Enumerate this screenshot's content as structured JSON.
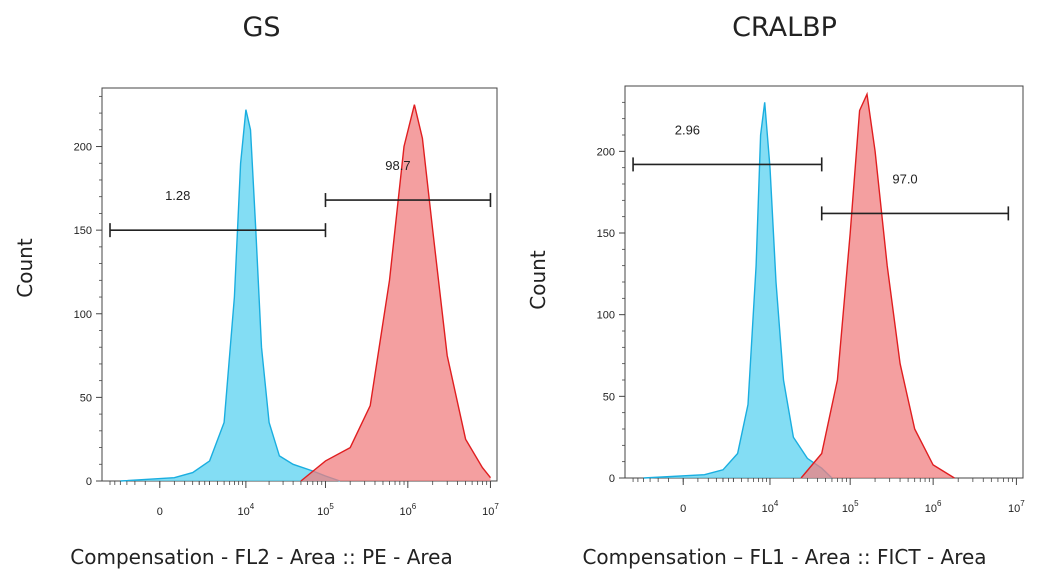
{
  "chart_data": [
    {
      "type": "area",
      "title": "GS",
      "xlabel": "Compensation - FL2 - Area :: PE - Area",
      "ylabel": "Count",
      "x_scale": "biexponential",
      "ylim": [
        0,
        235
      ],
      "y_ticks": [
        0,
        50,
        100,
        150,
        200
      ],
      "x_tick_labels": [
        {
          "base": "0",
          "exp": ""
        },
        {
          "base": "10",
          "exp": "4"
        },
        {
          "base": "10",
          "exp": "5"
        },
        {
          "base": "10",
          "exp": "6"
        },
        {
          "base": "10",
          "exp": "7"
        }
      ],
      "series": [
        {
          "color": "#5ad2f0",
          "line_color": "#1aaee0",
          "x": [
            -2000,
            500,
            1500,
            3000,
            5000,
            7000,
            8500,
            10000,
            11500,
            13500,
            16000,
            20000,
            27000,
            40000,
            70000,
            100000,
            150000
          ],
          "y": [
            0,
            2,
            5,
            12,
            35,
            110,
            190,
            222,
            210,
            150,
            80,
            35,
            15,
            10,
            6,
            3,
            0
          ]
        },
        {
          "color": "#f07f80",
          "line_color": "#e01e20",
          "x": [
            50000,
            100000,
            200000,
            350000,
            600000,
            900000,
            1200000,
            1500000,
            2000000,
            3000000,
            5000000,
            8000000,
            10000000
          ],
          "y": [
            0,
            12,
            20,
            45,
            120,
            200,
            225,
            205,
            150,
            75,
            25,
            8,
            2
          ]
        }
      ],
      "gates": [
        {
          "label": "1.28",
          "x1": -3000,
          "x2": 100000,
          "y": 150
        },
        {
          "label": "98.7",
          "x1": 100000,
          "x2": 10000000,
          "y": 168
        }
      ]
    },
    {
      "type": "area",
      "title": "CRALBP",
      "xlabel": "Compensation – FL1 - Area :: FICT - Area",
      "ylabel": "Count",
      "x_scale": "biexponential",
      "ylim": [
        0,
        240
      ],
      "y_ticks": [
        0,
        50,
        100,
        150,
        200
      ],
      "x_tick_labels": [
        {
          "base": "0",
          "exp": ""
        },
        {
          "base": "10",
          "exp": "4"
        },
        {
          "base": "10",
          "exp": "5"
        },
        {
          "base": "10",
          "exp": "6"
        },
        {
          "base": "10",
          "exp": "7"
        }
      ],
      "series": [
        {
          "color": "#5ad2f0",
          "line_color": "#1aaee0",
          "x": [
            -2000,
            800,
            2000,
            3500,
            5000,
            6500,
            7500,
            8500,
            10000,
            12000,
            15000,
            20000,
            30000,
            45000,
            60000
          ],
          "y": [
            0,
            2,
            5,
            15,
            45,
            130,
            210,
            230,
            190,
            120,
            60,
            25,
            12,
            6,
            0
          ]
        },
        {
          "color": "#f07f80",
          "line_color": "#e01e20",
          "x": [
            25000,
            45000,
            70000,
            100000,
            130000,
            160000,
            200000,
            280000,
            400000,
            600000,
            1000000,
            1800000
          ],
          "y": [
            0,
            15,
            60,
            150,
            225,
            235,
            200,
            130,
            70,
            30,
            8,
            0
          ]
        }
      ],
      "gates": [
        {
          "label": "2.96",
          "x1": -3000,
          "x2": 45000,
          "y": 192
        },
        {
          "label": "97.0",
          "x1": 45000,
          "x2": 8000000,
          "y": 162
        }
      ]
    }
  ]
}
